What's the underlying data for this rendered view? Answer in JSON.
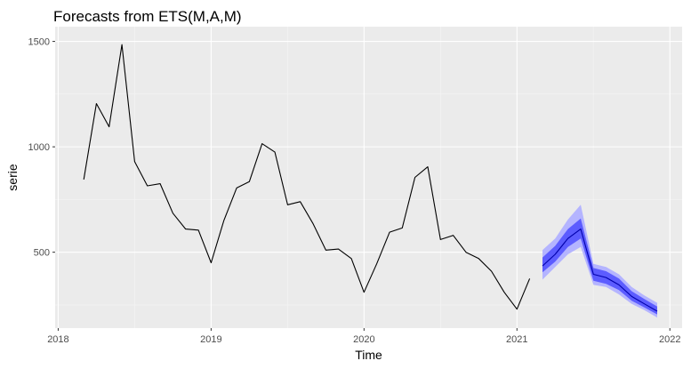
{
  "chart_data": {
    "type": "line",
    "title": "Forecasts from ETS(M,A,M)",
    "xlabel": "Time",
    "ylabel": "serie",
    "xlim": [
      2017.98,
      2022.08
    ],
    "ylim": [
      140,
      1570
    ],
    "x_ticks": [
      2018,
      2019,
      2020,
      2021,
      2022
    ],
    "x_tick_labels": [
      "2018",
      "2019",
      "2020",
      "2021",
      "2022"
    ],
    "y_ticks": [
      500,
      1000,
      1500
    ],
    "y_tick_labels": [
      "500",
      "1000",
      "1500"
    ],
    "grid": true,
    "colors": {
      "panel_background": "#ebebeb",
      "grid_major": "#ffffff",
      "grid_minor": "#f5f5f5",
      "series_line": "#000000",
      "forecast_line": "#0000aa",
      "pi80": "#5c5cff",
      "pi95": "#b4b4ff"
    },
    "series": [
      {
        "x": [
          2018.167,
          2018.25,
          2018.333,
          2018.417,
          2018.5,
          2018.583,
          2018.667,
          2018.75,
          2018.833,
          2018.917,
          2019.0,
          2019.083,
          2019.167,
          2019.25,
          2019.333,
          2019.417,
          2019.5,
          2019.583,
          2019.667,
          2019.75,
          2019.833,
          2019.917,
          2020.0,
          2020.083,
          2020.167,
          2020.25,
          2020.333,
          2020.417,
          2020.5,
          2020.583,
          2020.667,
          2020.75,
          2020.833,
          2020.917,
          2021.0,
          2021.083
        ],
        "values": [
          845,
          1205,
          1095,
          1485,
          930,
          815,
          825,
          685,
          610,
          605,
          450,
          650,
          805,
          835,
          1015,
          975,
          725,
          740,
          635,
          510,
          515,
          470,
          310,
          445,
          595,
          615,
          855,
          905,
          560,
          580,
          500,
          470,
          410,
          310,
          230,
          375
        ]
      }
    ],
    "forecast": {
      "x": [
        2021.167,
        2021.25,
        2021.333,
        2021.417,
        2021.5,
        2021.583,
        2021.667,
        2021.75,
        2021.833,
        2021.917
      ],
      "mean": [
        435,
        490,
        565,
        610,
        395,
        380,
        345,
        290,
        255,
        220
      ],
      "lo80": [
        405,
        455,
        525,
        565,
        365,
        350,
        320,
        270,
        238,
        205
      ],
      "hi80": [
        475,
        530,
        610,
        660,
        425,
        410,
        375,
        315,
        278,
        242
      ],
      "lo95": [
        370,
        430,
        490,
        525,
        345,
        335,
        300,
        255,
        225,
        190
      ],
      "hi95": [
        510,
        565,
        655,
        725,
        445,
        430,
        395,
        335,
        295,
        260
      ]
    }
  }
}
